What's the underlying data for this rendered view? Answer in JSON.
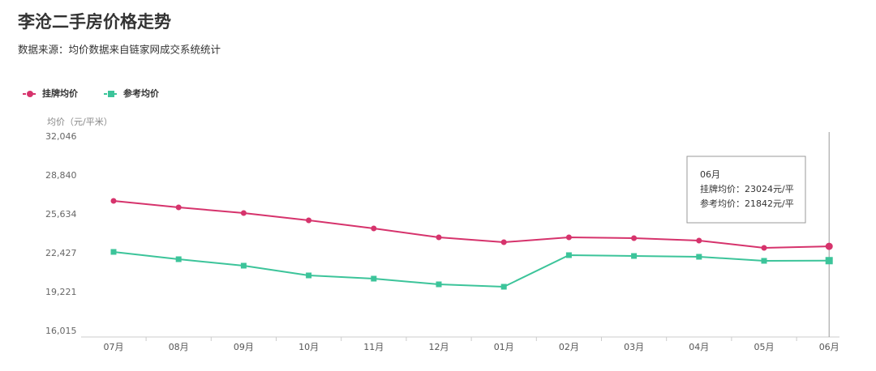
{
  "chart_data": {
    "type": "line",
    "title": "李沧二手房价格走势",
    "subtitle": "数据来源：均价数据来自链家网成交系统统计",
    "y_label": "均价（元/平米）",
    "categories": [
      "07月",
      "08月",
      "09月",
      "10月",
      "11月",
      "12月",
      "01月",
      "02月",
      "03月",
      "04月",
      "05月",
      "06月"
    ],
    "series": [
      {
        "name": "挂牌均价",
        "color": "#d6336c",
        "marker": "circle",
        "values": [
          26770,
          26235,
          25768,
          25167,
          24499,
          23764,
          23363,
          23764,
          23697,
          23497,
          22895,
          23024
        ]
      },
      {
        "name": "参考均价",
        "color": "#3cc49a",
        "marker": "square",
        "values": [
          22562,
          21960,
          21426,
          20624,
          20357,
          19889,
          19689,
          22294,
          22227,
          22161,
          21827,
          21842
        ]
      }
    ],
    "ylim": [
      16015,
      32046
    ],
    "yticks": [
      {
        "value": 16015,
        "label": "16,015"
      },
      {
        "value": 19221,
        "label": "19,221"
      },
      {
        "value": 22427,
        "label": "22,427"
      },
      {
        "value": 25634,
        "label": "25,634"
      },
      {
        "value": 28840,
        "label": "28,840"
      },
      {
        "value": 32046,
        "label": "32,046"
      }
    ],
    "grid": false,
    "legend": "top-left",
    "tooltip": {
      "index": 11,
      "title": "06月",
      "lines": [
        "挂牌均价：23024元/平",
        "参考均价：21842元/平"
      ]
    }
  }
}
